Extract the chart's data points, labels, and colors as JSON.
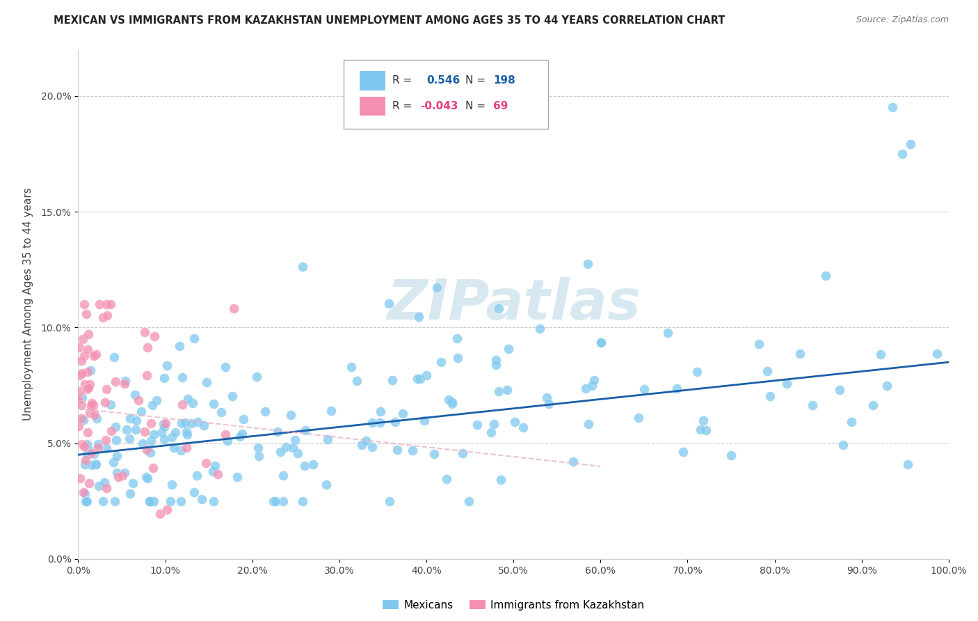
{
  "title": "MEXICAN VS IMMIGRANTS FROM KAZAKHSTAN UNEMPLOYMENT AMONG AGES 35 TO 44 YEARS CORRELATION CHART",
  "source": "Source: ZipAtlas.com",
  "ylabel": "Unemployment Among Ages 35 to 44 years",
  "xlim": [
    0,
    1.0
  ],
  "ylim": [
    0,
    0.22
  ],
  "xtick_vals": [
    0.0,
    0.1,
    0.2,
    0.3,
    0.4,
    0.5,
    0.6,
    0.7,
    0.8,
    0.9,
    1.0
  ],
  "ytick_vals": [
    0.0,
    0.05,
    0.1,
    0.15,
    0.2
  ],
  "mexican_R": 0.546,
  "mexican_N": 198,
  "kazakhstan_R": -0.043,
  "kazakhstan_N": 69,
  "mexican_color": "#7ec8f0",
  "kazakhstan_color": "#f48fb1",
  "mexican_line_color": "#1a5fa8",
  "kazakhstan_line_color": "#e8b4c8",
  "legend_mexican": "Mexicans",
  "legend_kazakhstan": "Immigrants from Kazakhstan",
  "watermark_color": "#d8e8f0"
}
